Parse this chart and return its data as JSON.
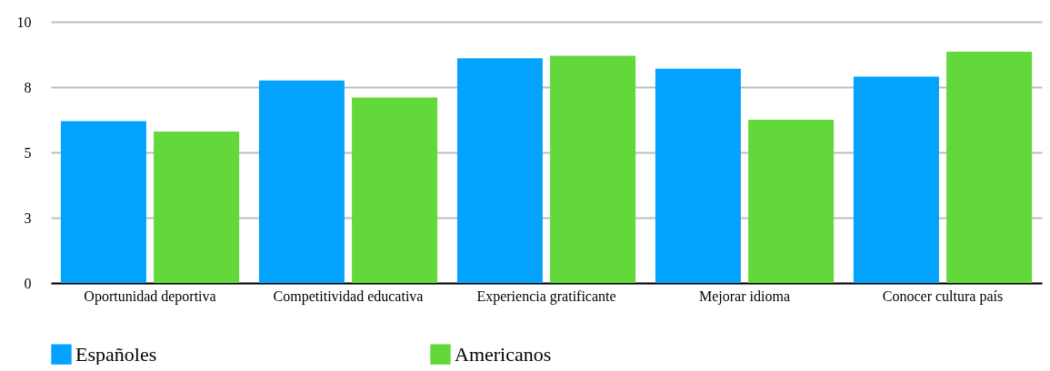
{
  "chart_data": {
    "type": "bar",
    "categories": [
      "Oportunidad deportiva",
      "Competitividad educativa",
      "Experiencia gratificante",
      "Mejorar idioma",
      "Conocer cultura país"
    ],
    "series": [
      {
        "name": "Españoles",
        "color": "#03a3fd",
        "values": [
          6.2,
          7.75,
          8.6,
          8.2,
          7.9
        ]
      },
      {
        "name": "Americanos",
        "color": "#62d83a",
        "values": [
          5.8,
          7.1,
          8.7,
          6.25,
          8.85
        ]
      }
    ],
    "ylim": [
      0,
      10
    ],
    "yticks": [
      0,
      {
        "value": 2.5,
        "label": "3"
      },
      5,
      {
        "value": 7.5,
        "label": "8"
      },
      10
    ],
    "grid": "y",
    "legend": "bottom"
  }
}
